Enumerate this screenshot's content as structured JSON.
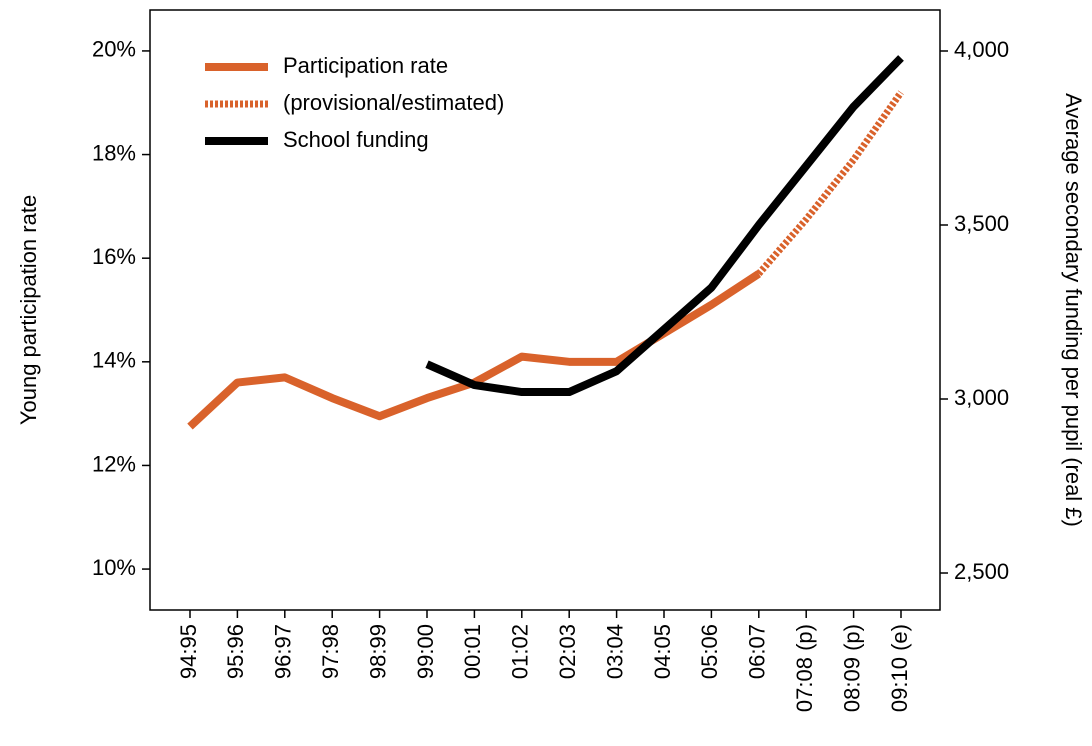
{
  "chart_data": {
    "type": "line",
    "y_label": "Young participation rate",
    "y2_label": "Average secondary funding per pupil (real £)",
    "categories": [
      "94:95",
      "95:96",
      "96:97",
      "97:98",
      "98:99",
      "99:00",
      "00:01",
      "01:02",
      "02:03",
      "03:04",
      "04:05",
      "05:06",
      "06:07",
      "07:08 (p)",
      "08:09 (p)",
      "09:10 (e)"
    ],
    "series": [
      {
        "name": "Participation rate",
        "color": "#d9622b",
        "dashed": false,
        "values": [
          12.75,
          13.6,
          13.7,
          13.3,
          12.95,
          13.3,
          13.6,
          14.1,
          14.0,
          14.0,
          14.55,
          15.1,
          15.7,
          null,
          null,
          null
        ]
      },
      {
        "name": "(provisional/estimated)",
        "color": "#d9622b",
        "dashed": true,
        "values": [
          null,
          null,
          null,
          null,
          null,
          null,
          null,
          null,
          null,
          null,
          null,
          null,
          15.7,
          16.75,
          17.9,
          19.2
        ]
      },
      {
        "name": "School funding",
        "color": "#000000",
        "dashed": false,
        "axis": "y2",
        "values": [
          null,
          null,
          null,
          null,
          null,
          3100,
          3040,
          3020,
          3020,
          3080,
          3200,
          3320,
          3500,
          3670,
          3840,
          3980
        ]
      }
    ],
    "ylim": [
      9.21,
      20.79
    ],
    "yticks": [
      {
        "value": 10,
        "label": "10%"
      },
      {
        "value": 12,
        "label": "12%"
      },
      {
        "value": 14,
        "label": "14%"
      },
      {
        "value": 16,
        "label": "16%"
      },
      {
        "value": 18,
        "label": "18%"
      },
      {
        "value": 20,
        "label": "20%"
      }
    ],
    "y2lim": [
      2393.7,
      4117.8
    ],
    "y2ticks": [
      {
        "value": 2500,
        "label": "2,500"
      },
      {
        "value": 3000,
        "label": "3,000"
      },
      {
        "value": 3500,
        "label": "3,500"
      },
      {
        "value": 4000,
        "label": "4,000"
      }
    ],
    "grid": false,
    "legend": "upper left"
  }
}
